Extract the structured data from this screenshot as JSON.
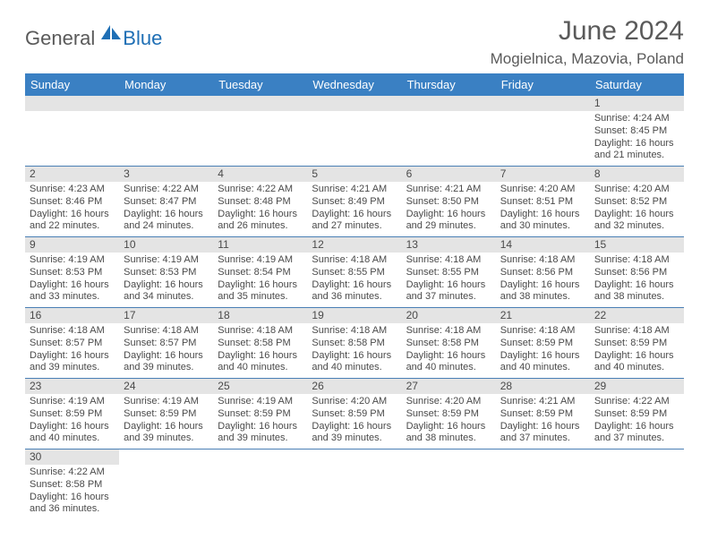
{
  "brand": {
    "part1": "General",
    "part2": "Blue"
  },
  "title": "June 2024",
  "location": "Mogielnica, Mazovia, Poland",
  "colors": {
    "header_bg": "#3a80c3",
    "header_text": "#ffffff",
    "daynum_bg": "#e4e4e4",
    "cell_border": "#4a7fb5",
    "text": "#4a4a4a",
    "brand_accent": "#1f6fb5"
  },
  "weekdays": [
    "Sunday",
    "Monday",
    "Tuesday",
    "Wednesday",
    "Thursday",
    "Friday",
    "Saturday"
  ],
  "weeks": [
    [
      null,
      null,
      null,
      null,
      null,
      null,
      {
        "n": "1",
        "sr": "4:24 AM",
        "ss": "8:45 PM",
        "dl": "16 hours and 21 minutes."
      }
    ],
    [
      {
        "n": "2",
        "sr": "4:23 AM",
        "ss": "8:46 PM",
        "dl": "16 hours and 22 minutes."
      },
      {
        "n": "3",
        "sr": "4:22 AM",
        "ss": "8:47 PM",
        "dl": "16 hours and 24 minutes."
      },
      {
        "n": "4",
        "sr": "4:22 AM",
        "ss": "8:48 PM",
        "dl": "16 hours and 26 minutes."
      },
      {
        "n": "5",
        "sr": "4:21 AM",
        "ss": "8:49 PM",
        "dl": "16 hours and 27 minutes."
      },
      {
        "n": "6",
        "sr": "4:21 AM",
        "ss": "8:50 PM",
        "dl": "16 hours and 29 minutes."
      },
      {
        "n": "7",
        "sr": "4:20 AM",
        "ss": "8:51 PM",
        "dl": "16 hours and 30 minutes."
      },
      {
        "n": "8",
        "sr": "4:20 AM",
        "ss": "8:52 PM",
        "dl": "16 hours and 32 minutes."
      }
    ],
    [
      {
        "n": "9",
        "sr": "4:19 AM",
        "ss": "8:53 PM",
        "dl": "16 hours and 33 minutes."
      },
      {
        "n": "10",
        "sr": "4:19 AM",
        "ss": "8:53 PM",
        "dl": "16 hours and 34 minutes."
      },
      {
        "n": "11",
        "sr": "4:19 AM",
        "ss": "8:54 PM",
        "dl": "16 hours and 35 minutes."
      },
      {
        "n": "12",
        "sr": "4:18 AM",
        "ss": "8:55 PM",
        "dl": "16 hours and 36 minutes."
      },
      {
        "n": "13",
        "sr": "4:18 AM",
        "ss": "8:55 PM",
        "dl": "16 hours and 37 minutes."
      },
      {
        "n": "14",
        "sr": "4:18 AM",
        "ss": "8:56 PM",
        "dl": "16 hours and 38 minutes."
      },
      {
        "n": "15",
        "sr": "4:18 AM",
        "ss": "8:56 PM",
        "dl": "16 hours and 38 minutes."
      }
    ],
    [
      {
        "n": "16",
        "sr": "4:18 AM",
        "ss": "8:57 PM",
        "dl": "16 hours and 39 minutes."
      },
      {
        "n": "17",
        "sr": "4:18 AM",
        "ss": "8:57 PM",
        "dl": "16 hours and 39 minutes."
      },
      {
        "n": "18",
        "sr": "4:18 AM",
        "ss": "8:58 PM",
        "dl": "16 hours and 40 minutes."
      },
      {
        "n": "19",
        "sr": "4:18 AM",
        "ss": "8:58 PM",
        "dl": "16 hours and 40 minutes."
      },
      {
        "n": "20",
        "sr": "4:18 AM",
        "ss": "8:58 PM",
        "dl": "16 hours and 40 minutes."
      },
      {
        "n": "21",
        "sr": "4:18 AM",
        "ss": "8:59 PM",
        "dl": "16 hours and 40 minutes."
      },
      {
        "n": "22",
        "sr": "4:18 AM",
        "ss": "8:59 PM",
        "dl": "16 hours and 40 minutes."
      }
    ],
    [
      {
        "n": "23",
        "sr": "4:19 AM",
        "ss": "8:59 PM",
        "dl": "16 hours and 40 minutes."
      },
      {
        "n": "24",
        "sr": "4:19 AM",
        "ss": "8:59 PM",
        "dl": "16 hours and 39 minutes."
      },
      {
        "n": "25",
        "sr": "4:19 AM",
        "ss": "8:59 PM",
        "dl": "16 hours and 39 minutes."
      },
      {
        "n": "26",
        "sr": "4:20 AM",
        "ss": "8:59 PM",
        "dl": "16 hours and 39 minutes."
      },
      {
        "n": "27",
        "sr": "4:20 AM",
        "ss": "8:59 PM",
        "dl": "16 hours and 38 minutes."
      },
      {
        "n": "28",
        "sr": "4:21 AM",
        "ss": "8:59 PM",
        "dl": "16 hours and 37 minutes."
      },
      {
        "n": "29",
        "sr": "4:22 AM",
        "ss": "8:59 PM",
        "dl": "16 hours and 37 minutes."
      }
    ],
    [
      {
        "n": "30",
        "sr": "4:22 AM",
        "ss": "8:58 PM",
        "dl": "16 hours and 36 minutes."
      },
      null,
      null,
      null,
      null,
      null,
      null
    ]
  ],
  "labels": {
    "sunrise": "Sunrise:",
    "sunset": "Sunset:",
    "daylight": "Daylight:"
  }
}
